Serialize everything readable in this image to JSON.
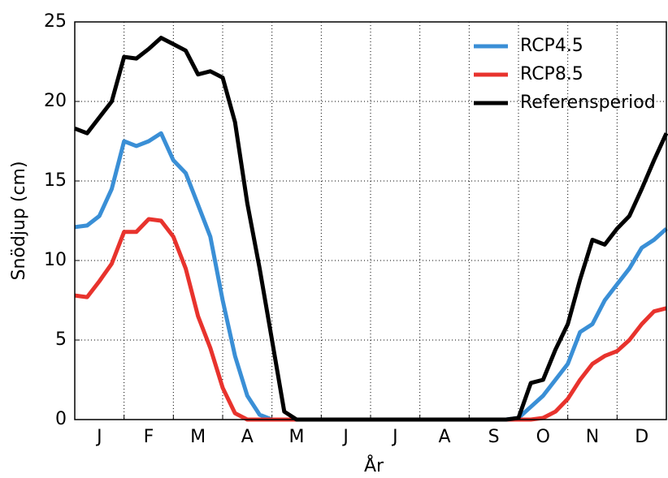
{
  "chart_data": {
    "type": "line",
    "x_label": "År",
    "y_label": "Snödjup (cm)",
    "x": [
      0,
      0.25,
      0.5,
      0.75,
      1,
      1.25,
      1.5,
      1.75,
      2,
      2.25,
      2.5,
      2.75,
      3,
      3.25,
      3.5,
      3.75,
      4,
      4.25,
      4.5,
      4.75,
      5,
      5.25,
      5.5,
      5.75,
      6,
      6.25,
      6.5,
      6.75,
      7,
      7.25,
      7.5,
      7.75,
      8,
      8.25,
      8.5,
      8.75,
      9,
      9.25,
      9.5,
      9.75,
      10,
      10.25,
      10.5,
      10.75,
      11,
      11.25,
      11.5,
      11.75,
      12
    ],
    "series": [
      {
        "name": "RCP4.5",
        "color": "#3a8fd6",
        "values": [
          12.1,
          12.2,
          12.8,
          14.5,
          17.5,
          17.2,
          17.5,
          18.0,
          16.3,
          15.5,
          13.5,
          11.5,
          7.5,
          4.0,
          1.5,
          0.3,
          0,
          0,
          0,
          0,
          0,
          0,
          0,
          0,
          0,
          0,
          0,
          0,
          0,
          0,
          0,
          0,
          0,
          0,
          0,
          0,
          0.1,
          0.8,
          1.5,
          2.5,
          3.5,
          5.5,
          6.0,
          7.5,
          8.5,
          9.5,
          10.8,
          11.3,
          12.0
        ]
      },
      {
        "name": "RCP8.5",
        "color": "#e8332d",
        "values": [
          7.8,
          7.7,
          8.7,
          9.8,
          11.8,
          11.8,
          12.6,
          12.5,
          11.5,
          9.5,
          6.5,
          4.5,
          2.0,
          0.4,
          0,
          0,
          0,
          0,
          0,
          0,
          0,
          0,
          0,
          0,
          0,
          0,
          0,
          0,
          0,
          0,
          0,
          0,
          0,
          0,
          0,
          0,
          0,
          0,
          0.1,
          0.5,
          1.3,
          2.5,
          3.5,
          4.0,
          4.3,
          5.0,
          6.0,
          6.8,
          7.0
        ]
      },
      {
        "name": "Referensperiod",
        "color": "#000000",
        "values": [
          18.3,
          18.0,
          19.0,
          20.0,
          22.8,
          22.7,
          23.3,
          24.0,
          23.6,
          23.2,
          21.7,
          21.9,
          21.5,
          18.7,
          13.6,
          9.5,
          5.0,
          0.5,
          0,
          0,
          0,
          0,
          0,
          0,
          0,
          0,
          0,
          0,
          0,
          0,
          0,
          0,
          0,
          0,
          0,
          0,
          0.1,
          2.3,
          2.5,
          4.4,
          6.0,
          8.8,
          11.3,
          11.0,
          12.0,
          12.8,
          14.5,
          16.3,
          18.0
        ]
      }
    ],
    "xlim": [
      0,
      12
    ],
    "xticks": [
      {
        "value": 0.5,
        "label": "J"
      },
      {
        "value": 1.5,
        "label": "F"
      },
      {
        "value": 2.5,
        "label": "M"
      },
      {
        "value": 3.5,
        "label": "A"
      },
      {
        "value": 4.5,
        "label": "M"
      },
      {
        "value": 5.5,
        "label": "J"
      },
      {
        "value": 6.5,
        "label": "J"
      },
      {
        "value": 7.5,
        "label": "A"
      },
      {
        "value": 8.5,
        "label": "S"
      },
      {
        "value": 9.5,
        "label": "O"
      },
      {
        "value": 10.5,
        "label": "N"
      },
      {
        "value": 11.5,
        "label": "D"
      }
    ],
    "ylim": [
      0,
      25
    ],
    "yticks": [
      0,
      5,
      10,
      15,
      20,
      25
    ],
    "grid": true,
    "legend": "upper right"
  }
}
